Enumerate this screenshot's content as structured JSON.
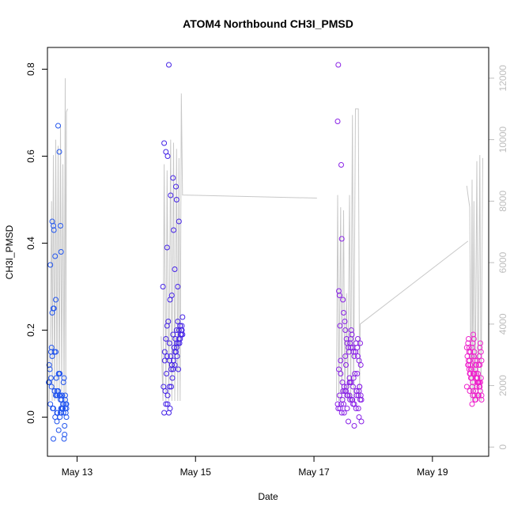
{
  "chart_data": {
    "type": "scatter",
    "title": "ATOM4 Northbound CH3I_PMSD",
    "xlabel": "Date",
    "ylabel": "CH3I_PMSD",
    "x_ticks": [
      "May 13",
      "May 15",
      "May 17",
      "May 19"
    ],
    "y_ticks": [
      "0.0",
      "0.2",
      "0.4",
      "0.6",
      "0.8"
    ],
    "y2_ticks": [
      "0",
      "2000",
      "4000",
      "6000",
      "8000",
      "10000",
      "12000"
    ],
    "xlim_days": [
      12.5,
      19.95
    ],
    "ylim": [
      -0.09,
      0.85
    ],
    "y2lim": [
      -300,
      13000
    ],
    "grid": false,
    "colors": {
      "cluster1": "#2255ee",
      "cluster2": "#4422e6",
      "cluster3": "#8a22e6",
      "cluster4": "#ee22cc",
      "line": "#c8c8c8",
      "axis": "#000000",
      "right_axis": "#bdbdbd"
    },
    "series": [
      {
        "x_days": [
          12.53,
          12.55,
          12.57,
          12.58,
          12.6,
          12.61,
          12.62,
          12.63,
          12.64,
          12.65,
          12.66,
          12.67,
          12.68,
          12.69,
          12.7,
          12.71,
          12.72,
          12.73,
          12.74,
          12.75,
          12.76,
          12.77,
          12.78,
          12.79,
          12.8,
          12.81,
          12.82,
          12.53,
          12.56,
          12.58,
          12.6,
          12.62,
          12.64,
          12.66,
          12.68,
          12.7,
          12.72,
          12.74,
          12.76,
          12.78,
          12.8,
          12.82,
          12.54,
          12.57,
          12.6,
          12.63,
          12.66,
          12.69,
          12.72,
          12.75,
          12.78,
          12.81,
          12.55,
          12.59,
          12.62,
          12.65,
          12.68,
          12.71,
          12.74,
          12.77,
          12.8,
          12.56,
          12.61,
          12.67,
          12.73,
          12.79,
          12.52,
          12.58,
          12.64,
          12.7,
          12.76,
          12.82,
          12.6,
          12.71,
          12.73
        ],
        "y": [
          0.08,
          0.35,
          0.16,
          0.45,
          0.44,
          0.43,
          0.15,
          0.37,
          0.27,
          0.09,
          0.06,
          0.05,
          0.67,
          0.1,
          0.61,
          0.05,
          0.44,
          0.38,
          0.05,
          0.02,
          0.03,
          0.01,
          -0.05,
          -0.04,
          0.02,
          0.03,
          0.02,
          0.12,
          0.15,
          0.24,
          0.25,
          0.06,
          0.05,
          0.01,
          0.06,
          0.05,
          0.04,
          0.02,
          0.02,
          0.03,
          0.04,
          0.03,
          0.11,
          0.07,
          0.02,
          0.0,
          -0.01,
          -0.03,
          0.01,
          0.05,
          0.09,
          0.01,
          0.03,
          0.02,
          0.06,
          0.05,
          0.06,
          0.1,
          0.04,
          0.08,
          0.05,
          0.09,
          0.25,
          0.01,
          0.02,
          -0.02,
          0.08,
          0.14,
          0.15,
          0.1,
          0.02,
          0.0,
          -0.05,
          0.0,
          0.01
        ],
        "line_points": [
          [
            12.53,
            1500
          ],
          [
            12.55,
            4000
          ],
          [
            12.57,
            8000
          ],
          [
            12.58,
            1500
          ],
          [
            12.6,
            9500
          ],
          [
            12.62,
            1500
          ],
          [
            12.64,
            10000
          ],
          [
            12.66,
            1800
          ],
          [
            12.68,
            9800
          ],
          [
            12.7,
            1500
          ],
          [
            12.72,
            10500
          ],
          [
            12.74,
            1800
          ],
          [
            12.76,
            9200
          ],
          [
            12.78,
            1500
          ],
          [
            12.8,
            12000
          ],
          [
            12.81,
            1500
          ],
          [
            12.82,
            10900
          ],
          [
            12.84,
            11000
          ]
        ]
      },
      {
        "x_days": [
          14.45,
          14.47,
          14.5,
          14.52,
          14.53,
          14.55,
          14.57,
          14.58,
          14.6,
          14.62,
          14.63,
          14.65,
          14.67,
          14.68,
          14.7,
          14.72,
          14.74,
          14.76,
          14.78,
          14.48,
          14.5,
          14.52,
          14.54,
          14.56,
          14.58,
          14.6,
          14.62,
          14.64,
          14.66,
          14.68,
          14.7,
          14.72,
          14.74,
          14.76,
          14.78,
          14.46,
          14.49,
          14.51,
          14.53,
          14.55,
          14.57,
          14.59,
          14.61,
          14.63,
          14.65,
          14.67,
          14.69,
          14.71,
          14.73,
          14.75,
          14.77,
          14.47,
          14.5,
          14.53,
          14.56,
          14.59,
          14.62,
          14.65,
          14.68,
          14.71,
          14.74,
          14.77,
          14.48,
          14.52,
          14.56,
          14.6,
          14.64,
          14.68,
          14.72,
          14.76
        ],
        "y": [
          0.3,
          0.63,
          0.61,
          0.39,
          0.6,
          0.81,
          0.27,
          0.51,
          0.28,
          0.55,
          0.43,
          0.34,
          0.53,
          0.5,
          0.3,
          0.45,
          0.21,
          0.2,
          0.19,
          0.13,
          0.18,
          0.21,
          0.22,
          0.17,
          0.14,
          0.12,
          0.19,
          0.16,
          0.18,
          0.2,
          0.22,
          0.2,
          0.21,
          0.2,
          0.23,
          0.07,
          0.06,
          0.1,
          0.03,
          0.01,
          0.02,
          0.11,
          0.09,
          0.13,
          0.15,
          0.15,
          0.14,
          0.11,
          0.17,
          0.19,
          0.2,
          0.01,
          0.03,
          0.05,
          0.07,
          0.07,
          0.11,
          0.12,
          0.16,
          0.17,
          0.18,
          0.21,
          0.15,
          0.14,
          0.13,
          0.12,
          0.16,
          0.17,
          0.18,
          0.19
        ],
        "line_points": [
          [
            14.42,
            3600
          ],
          [
            14.45,
            1500
          ],
          [
            14.47,
            9200
          ],
          [
            14.5,
            1500
          ],
          [
            14.52,
            9000
          ],
          [
            14.55,
            1500
          ],
          [
            14.58,
            10000
          ],
          [
            14.6,
            1500
          ],
          [
            14.63,
            9900
          ],
          [
            14.65,
            1500
          ],
          [
            14.68,
            9700
          ],
          [
            14.7,
            1500
          ],
          [
            14.72,
            9400
          ],
          [
            14.74,
            1500
          ],
          [
            14.76,
            11500
          ],
          [
            14.78,
            8200
          ],
          [
            17.05,
            8100
          ]
        ]
      },
      {
        "x_days": [
          17.4,
          17.41,
          17.43,
          17.44,
          17.46,
          17.47,
          17.49,
          17.5,
          17.52,
          17.53,
          17.55,
          17.56,
          17.58,
          17.59,
          17.61,
          17.62,
          17.64,
          17.65,
          17.67,
          17.68,
          17.7,
          17.71,
          17.73,
          17.74,
          17.76,
          17.77,
          17.79,
          17.8,
          17.42,
          17.45,
          17.48,
          17.51,
          17.54,
          17.57,
          17.6,
          17.63,
          17.66,
          17.69,
          17.72,
          17.75,
          17.78,
          17.4,
          17.44,
          17.48,
          17.52,
          17.56,
          17.6,
          17.64,
          17.68,
          17.72,
          17.76,
          17.8,
          17.41,
          17.46,
          17.51,
          17.56,
          17.61,
          17.66,
          17.71,
          17.76,
          17.43,
          17.49,
          17.55,
          17.61,
          17.67,
          17.73,
          17.79,
          17.45,
          17.53,
          17.62,
          17.7,
          17.78,
          17.47,
          17.58,
          17.68,
          17.75,
          17.5,
          17.6,
          17.65,
          17.72,
          17.77,
          17.42,
          17.54,
          17.63,
          17.74
        ],
        "y": [
          0.68,
          0.81,
          0.28,
          0.21,
          0.58,
          0.41,
          0.27,
          0.24,
          0.22,
          0.2,
          0.18,
          0.17,
          0.16,
          0.15,
          0.17,
          0.18,
          0.19,
          0.16,
          0.15,
          0.14,
          0.15,
          0.17,
          0.16,
          0.14,
          0.13,
          0.07,
          0.05,
          -0.01,
          0.29,
          0.1,
          0.08,
          0.07,
          0.06,
          0.05,
          0.09,
          0.08,
          0.07,
          0.1,
          0.06,
          0.05,
          0.04,
          0.03,
          0.02,
          0.04,
          0.06,
          0.05,
          0.08,
          0.04,
          0.03,
          0.05,
          0.06,
          0.04,
          0.02,
          0.03,
          0.01,
          0.02,
          0.04,
          0.03,
          0.02,
          0.0,
          0.05,
          0.06,
          0.07,
          0.08,
          0.09,
          0.1,
          0.12,
          0.13,
          0.14,
          0.16,
          0.15,
          0.17,
          0.01,
          -0.01,
          -0.02,
          0.02,
          0.03,
          0.05,
          0.04,
          0.06,
          0.07,
          0.11,
          0.12,
          0.2,
          0.18
        ],
        "line_points": [
          [
            17.38,
            1500
          ],
          [
            17.4,
            8200
          ],
          [
            17.42,
            1500
          ],
          [
            17.45,
            7800
          ],
          [
            17.47,
            1500
          ],
          [
            17.5,
            7700
          ],
          [
            17.52,
            1500
          ],
          [
            17.55,
            5000
          ],
          [
            17.57,
            1500
          ],
          [
            17.6,
            8200
          ],
          [
            17.62,
            1500
          ],
          [
            17.65,
            10800
          ],
          [
            17.67,
            1500
          ],
          [
            17.7,
            11000
          ],
          [
            17.75,
            11000
          ],
          [
            17.77,
            1500
          ],
          [
            17.78,
            4000
          ],
          [
            19.6,
            6700
          ]
        ]
      },
      {
        "x_days": [
          19.58,
          19.6,
          19.61,
          19.62,
          19.63,
          19.64,
          19.65,
          19.66,
          19.67,
          19.68,
          19.69,
          19.7,
          19.71,
          19.72,
          19.73,
          19.74,
          19.75,
          19.76,
          19.77,
          19.78,
          19.79,
          19.8,
          19.81,
          19.82,
          19.83,
          19.59,
          19.61,
          19.63,
          19.65,
          19.67,
          19.69,
          19.71,
          19.73,
          19.75,
          19.77,
          19.79,
          19.81,
          19.83,
          19.6,
          19.62,
          19.64,
          19.66,
          19.68,
          19.7,
          19.72,
          19.74,
          19.76,
          19.78,
          19.8,
          19.82,
          19.58,
          19.63,
          19.68,
          19.73,
          19.78,
          19.83,
          19.61,
          19.66,
          19.71,
          19.76,
          19.81,
          19.64,
          19.7,
          19.75,
          19.8,
          19.67,
          19.72,
          19.77,
          19.62,
          19.69,
          19.74,
          19.79
        ],
        "y": [
          0.16,
          0.17,
          0.18,
          0.15,
          0.13,
          0.12,
          0.11,
          0.14,
          0.16,
          0.17,
          0.19,
          0.18,
          0.15,
          0.13,
          0.12,
          0.1,
          0.09,
          0.08,
          0.1,
          0.12,
          0.14,
          0.16,
          0.17,
          0.15,
          0.13,
          0.14,
          0.13,
          0.1,
          0.09,
          0.07,
          0.06,
          0.05,
          0.06,
          0.07,
          0.08,
          0.07,
          0.06,
          0.05,
          0.12,
          0.11,
          0.1,
          0.09,
          0.08,
          0.1,
          0.11,
          0.12,
          0.09,
          0.08,
          0.07,
          0.09,
          0.07,
          0.06,
          0.05,
          0.04,
          0.05,
          0.04,
          0.12,
          0.11,
          0.1,
          0.09,
          0.08,
          0.15,
          0.14,
          0.13,
          0.12,
          0.03,
          0.04,
          0.05,
          0.16,
          0.1,
          0.09,
          0.08
        ],
        "line_points": [
          [
            19.58,
            8500
          ],
          [
            19.6,
            8200
          ],
          [
            19.63,
            7800
          ],
          [
            19.65,
            1500
          ],
          [
            19.67,
            8700
          ],
          [
            19.68,
            1500
          ],
          [
            19.7,
            8000
          ],
          [
            19.72,
            1500
          ],
          [
            19.75,
            9300
          ],
          [
            19.77,
            1500
          ],
          [
            19.8,
            9500
          ],
          [
            19.82,
            1500
          ],
          [
            19.85,
            9400
          ]
        ]
      }
    ]
  }
}
